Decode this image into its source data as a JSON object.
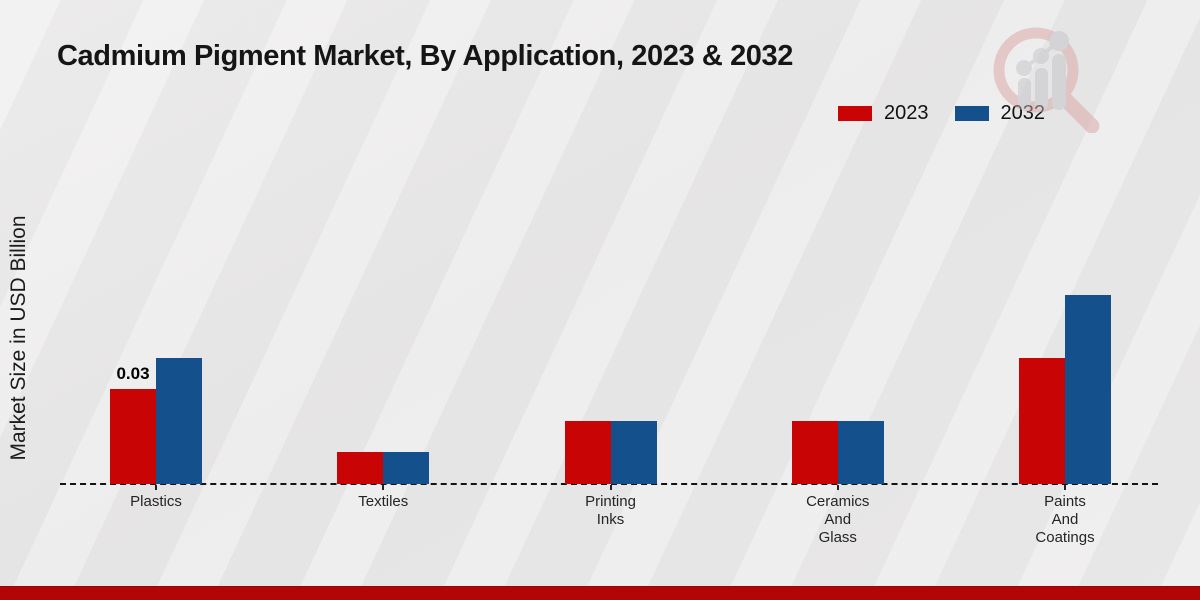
{
  "header": {
    "title": "Cadmium Pigment Market, By Application, 2023 & 2032"
  },
  "legend": {
    "items": [
      {
        "label": "2023",
        "color": "#c80404"
      },
      {
        "label": "2032",
        "color": "#14508c"
      }
    ]
  },
  "watermark_icon": "market-research-magnifier-logo",
  "chart_data": {
    "type": "bar",
    "title": "Cadmium Pigment Market, By Application, 2023 & 2032",
    "xlabel": "",
    "ylabel": "Market Size in USD Billion",
    "categories": [
      "Plastics",
      "Textiles",
      "Printing Inks",
      "Ceramics And Glass",
      "Paints And Coatings"
    ],
    "category_label_lines": [
      [
        "Plastics"
      ],
      [
        "Textiles"
      ],
      [
        "Printing",
        "Inks"
      ],
      [
        "Ceramics",
        "And",
        "Glass"
      ],
      [
        "Paints",
        "And",
        "Coatings"
      ]
    ],
    "series": [
      {
        "name": "2023",
        "color": "#c80404",
        "values": [
          0.03,
          0.01,
          0.02,
          0.02,
          0.04
        ]
      },
      {
        "name": "2032",
        "color": "#14508c",
        "values": [
          0.04,
          0.01,
          0.02,
          0.02,
          0.06
        ]
      }
    ],
    "annotations": [
      {
        "series": "2023",
        "category": "Plastics",
        "text": "0.03"
      }
    ],
    "ylim": [
      0,
      0.07
    ],
    "grid": false,
    "baseline_style": "dashed",
    "legend_position": "top-right"
  },
  "footer": {
    "accent_color": "#b20505"
  }
}
